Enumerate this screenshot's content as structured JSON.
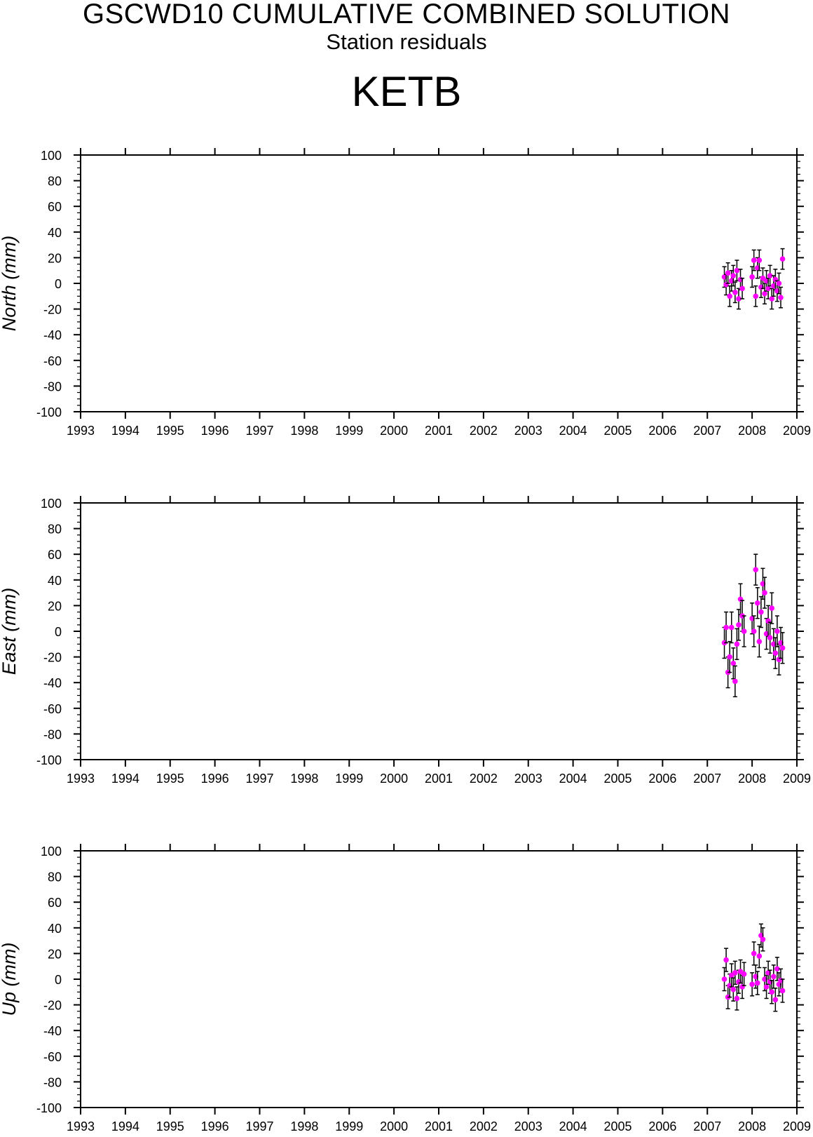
{
  "header": {
    "title": "GSCWD10 CUMULATIVE COMBINED SOLUTION",
    "subtitle": "Station residuals",
    "station": "KETB"
  },
  "colors": {
    "marker": "#ff00ff",
    "errorbar": "#000000",
    "axis": "#000000"
  },
  "chart_data": [
    {
      "type": "scatter",
      "ylabel": "North (mm)",
      "xlim": [
        1993,
        2009
      ],
      "ylim": [
        -100,
        100
      ],
      "x_ticks": [
        "1993",
        "1994",
        "1995",
        "1996",
        "1997",
        "1998",
        "1999",
        "2000",
        "2001",
        "2002",
        "2003",
        "2004",
        "2005",
        "2006",
        "2007",
        "2008",
        "2009"
      ],
      "y_ticks": [
        "100",
        "80",
        "60",
        "40",
        "20",
        "0",
        "-20",
        "-40",
        "-60",
        "-80",
        "-100"
      ],
      "grid": false,
      "points": [
        {
          "x": 2007.38,
          "y": 5,
          "err": 8
        },
        {
          "x": 2007.42,
          "y": -1,
          "err": 8
        },
        {
          "x": 2007.46,
          "y": 8,
          "err": 8
        },
        {
          "x": 2007.5,
          "y": -10,
          "err": 8
        },
        {
          "x": 2007.54,
          "y": 2,
          "err": 8
        },
        {
          "x": 2007.58,
          "y": 6,
          "err": 8
        },
        {
          "x": 2007.62,
          "y": -7,
          "err": 8
        },
        {
          "x": 2007.66,
          "y": 10,
          "err": 8
        },
        {
          "x": 2007.7,
          "y": -12,
          "err": 8
        },
        {
          "x": 2007.74,
          "y": 3,
          "err": 8
        },
        {
          "x": 2007.78,
          "y": -4,
          "err": 8
        },
        {
          "x": 2008.0,
          "y": 5,
          "err": 8
        },
        {
          "x": 2008.04,
          "y": 18,
          "err": 8
        },
        {
          "x": 2008.08,
          "y": -10,
          "err": 8
        },
        {
          "x": 2008.12,
          "y": 12,
          "err": 8
        },
        {
          "x": 2008.16,
          "y": 18,
          "err": 8
        },
        {
          "x": 2008.2,
          "y": -3,
          "err": 8
        },
        {
          "x": 2008.24,
          "y": 4,
          "err": 8
        },
        {
          "x": 2008.28,
          "y": -8,
          "err": 8
        },
        {
          "x": 2008.32,
          "y": 2,
          "err": 8
        },
        {
          "x": 2008.36,
          "y": -4,
          "err": 8
        },
        {
          "x": 2008.4,
          "y": 6,
          "err": 8
        },
        {
          "x": 2008.44,
          "y": -12,
          "err": 8
        },
        {
          "x": 2008.48,
          "y": -2,
          "err": 8
        },
        {
          "x": 2008.52,
          "y": 3,
          "err": 8
        },
        {
          "x": 2008.56,
          "y": -6,
          "err": 8
        },
        {
          "x": 2008.6,
          "y": 0,
          "err": 8
        },
        {
          "x": 2008.64,
          "y": -11,
          "err": 8
        },
        {
          "x": 2008.68,
          "y": 19,
          "err": 8
        }
      ]
    },
    {
      "type": "scatter",
      "ylabel": "East (mm)",
      "xlim": [
        1993,
        2009
      ],
      "ylim": [
        -100,
        100
      ],
      "x_ticks": [
        "1993",
        "1994",
        "1995",
        "1996",
        "1997",
        "1998",
        "1999",
        "2000",
        "2001",
        "2002",
        "2003",
        "2004",
        "2005",
        "2006",
        "2007",
        "2008",
        "2009"
      ],
      "y_ticks": [
        "100",
        "80",
        "60",
        "40",
        "20",
        "0",
        "-20",
        "-40",
        "-60",
        "-80",
        "-100"
      ],
      "grid": false,
      "points": [
        {
          "x": 2007.38,
          "y": -9,
          "err": 12
        },
        {
          "x": 2007.42,
          "y": 3,
          "err": 12
        },
        {
          "x": 2007.46,
          "y": -32,
          "err": 12
        },
        {
          "x": 2007.5,
          "y": -20,
          "err": 12
        },
        {
          "x": 2007.54,
          "y": 3,
          "err": 12
        },
        {
          "x": 2007.58,
          "y": -25,
          "err": 12
        },
        {
          "x": 2007.62,
          "y": -39,
          "err": 12
        },
        {
          "x": 2007.66,
          "y": -10,
          "err": 12
        },
        {
          "x": 2007.7,
          "y": 5,
          "err": 12
        },
        {
          "x": 2007.74,
          "y": 25,
          "err": 12
        },
        {
          "x": 2007.78,
          "y": 12,
          "err": 12
        },
        {
          "x": 2007.82,
          "y": 0,
          "err": 12
        },
        {
          "x": 2008.0,
          "y": 10,
          "err": 12
        },
        {
          "x": 2008.04,
          "y": 0,
          "err": 12
        },
        {
          "x": 2008.08,
          "y": 48,
          "err": 12
        },
        {
          "x": 2008.12,
          "y": 22,
          "err": 12
        },
        {
          "x": 2008.16,
          "y": -8,
          "err": 12
        },
        {
          "x": 2008.2,
          "y": 15,
          "err": 12
        },
        {
          "x": 2008.24,
          "y": 37,
          "err": 12
        },
        {
          "x": 2008.28,
          "y": 30,
          "err": 12
        },
        {
          "x": 2008.32,
          "y": -2,
          "err": 12
        },
        {
          "x": 2008.36,
          "y": 8,
          "err": 12
        },
        {
          "x": 2008.4,
          "y": -5,
          "err": 12
        },
        {
          "x": 2008.44,
          "y": 18,
          "err": 12
        },
        {
          "x": 2008.48,
          "y": -10,
          "err": 12
        },
        {
          "x": 2008.52,
          "y": -17,
          "err": 12
        },
        {
          "x": 2008.56,
          "y": 0,
          "err": 12
        },
        {
          "x": 2008.6,
          "y": -22,
          "err": 12
        },
        {
          "x": 2008.64,
          "y": -9,
          "err": 12
        },
        {
          "x": 2008.68,
          "y": -13,
          "err": 12
        }
      ]
    },
    {
      "type": "scatter",
      "ylabel": "Up (mm)",
      "xlim": [
        1993,
        2009
      ],
      "ylim": [
        -100,
        100
      ],
      "x_ticks": [
        "1993",
        "1994",
        "1995",
        "1996",
        "1997",
        "1998",
        "1999",
        "2000",
        "2001",
        "2002",
        "2003",
        "2004",
        "2005",
        "2006",
        "2007",
        "2008",
        "2009"
      ],
      "y_ticks": [
        "100",
        "80",
        "60",
        "40",
        "20",
        "0",
        "-20",
        "-40",
        "-60",
        "-80",
        "-100"
      ],
      "grid": false,
      "points": [
        {
          "x": 2007.38,
          "y": 0,
          "err": 9
        },
        {
          "x": 2007.42,
          "y": 15,
          "err": 9
        },
        {
          "x": 2007.46,
          "y": -14,
          "err": 9
        },
        {
          "x": 2007.5,
          "y": -5,
          "err": 9
        },
        {
          "x": 2007.54,
          "y": 3,
          "err": 9
        },
        {
          "x": 2007.58,
          "y": -8,
          "err": 9
        },
        {
          "x": 2007.62,
          "y": 5,
          "err": 9
        },
        {
          "x": 2007.66,
          "y": -15,
          "err": 9
        },
        {
          "x": 2007.7,
          "y": -2,
          "err": 9
        },
        {
          "x": 2007.74,
          "y": 6,
          "err": 9
        },
        {
          "x": 2007.78,
          "y": -6,
          "err": 9
        },
        {
          "x": 2007.82,
          "y": 4,
          "err": 9
        },
        {
          "x": 2008.0,
          "y": -4,
          "err": 9
        },
        {
          "x": 2008.04,
          "y": 20,
          "err": 9
        },
        {
          "x": 2008.08,
          "y": 2,
          "err": 9
        },
        {
          "x": 2008.12,
          "y": -3,
          "err": 9
        },
        {
          "x": 2008.16,
          "y": 18,
          "err": 9
        },
        {
          "x": 2008.2,
          "y": 34,
          "err": 9
        },
        {
          "x": 2008.24,
          "y": 31,
          "err": 9
        },
        {
          "x": 2008.28,
          "y": 0,
          "err": 9
        },
        {
          "x": 2008.32,
          "y": -6,
          "err": 9
        },
        {
          "x": 2008.36,
          "y": 5,
          "err": 9
        },
        {
          "x": 2008.4,
          "y": -2,
          "err": 9
        },
        {
          "x": 2008.44,
          "y": -10,
          "err": 9
        },
        {
          "x": 2008.48,
          "y": 2,
          "err": 9
        },
        {
          "x": 2008.52,
          "y": -16,
          "err": 9
        },
        {
          "x": 2008.56,
          "y": 8,
          "err": 9
        },
        {
          "x": 2008.6,
          "y": -4,
          "err": 9
        },
        {
          "x": 2008.64,
          "y": -1,
          "err": 9
        },
        {
          "x": 2008.68,
          "y": -9,
          "err": 9
        }
      ]
    }
  ]
}
